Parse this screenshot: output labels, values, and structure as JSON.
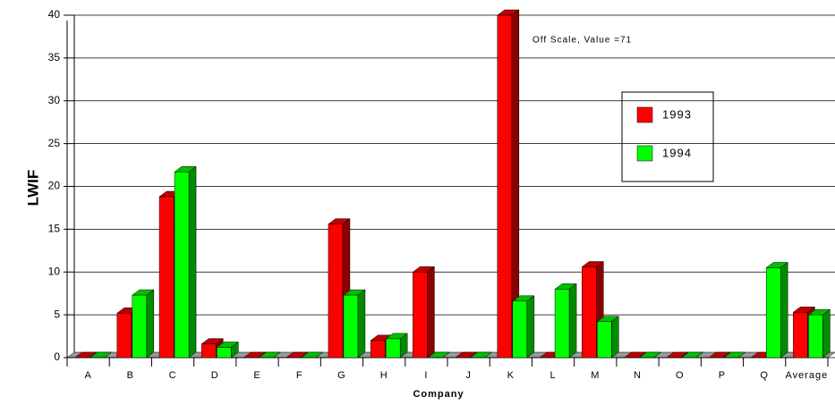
{
  "chart_data": {
    "type": "bar3d",
    "x_label": "Company",
    "y_label": "LWIF",
    "annotation": "Off Scale, Value =71",
    "categories": [
      "A",
      "B",
      "C",
      "D",
      "E",
      "F",
      "G",
      "H",
      "I",
      "J",
      "K",
      "L",
      "M",
      "N",
      "O",
      "P",
      "Q",
      "Average"
    ],
    "series": [
      {
        "name": "1993",
        "color": "#ff0000",
        "values": [
          0,
          5.2,
          18.8,
          1.6,
          0,
          0,
          15.6,
          2.0,
          10.0,
          0,
          71,
          0,
          10.6,
          0,
          0,
          0,
          0,
          5.3
        ]
      },
      {
        "name": "1994",
        "color": "#00ff00",
        "values": [
          0,
          7.3,
          21.7,
          1.2,
          0,
          0,
          7.3,
          2.2,
          0,
          0,
          6.6,
          8.0,
          4.2,
          0,
          0,
          0,
          10.5,
          5.0
        ]
      }
    ],
    "ylim": [
      0,
      40
    ],
    "yticks": [
      0,
      5,
      10,
      15,
      20,
      25,
      30,
      35,
      40
    ],
    "grid": true,
    "legend": "right"
  }
}
